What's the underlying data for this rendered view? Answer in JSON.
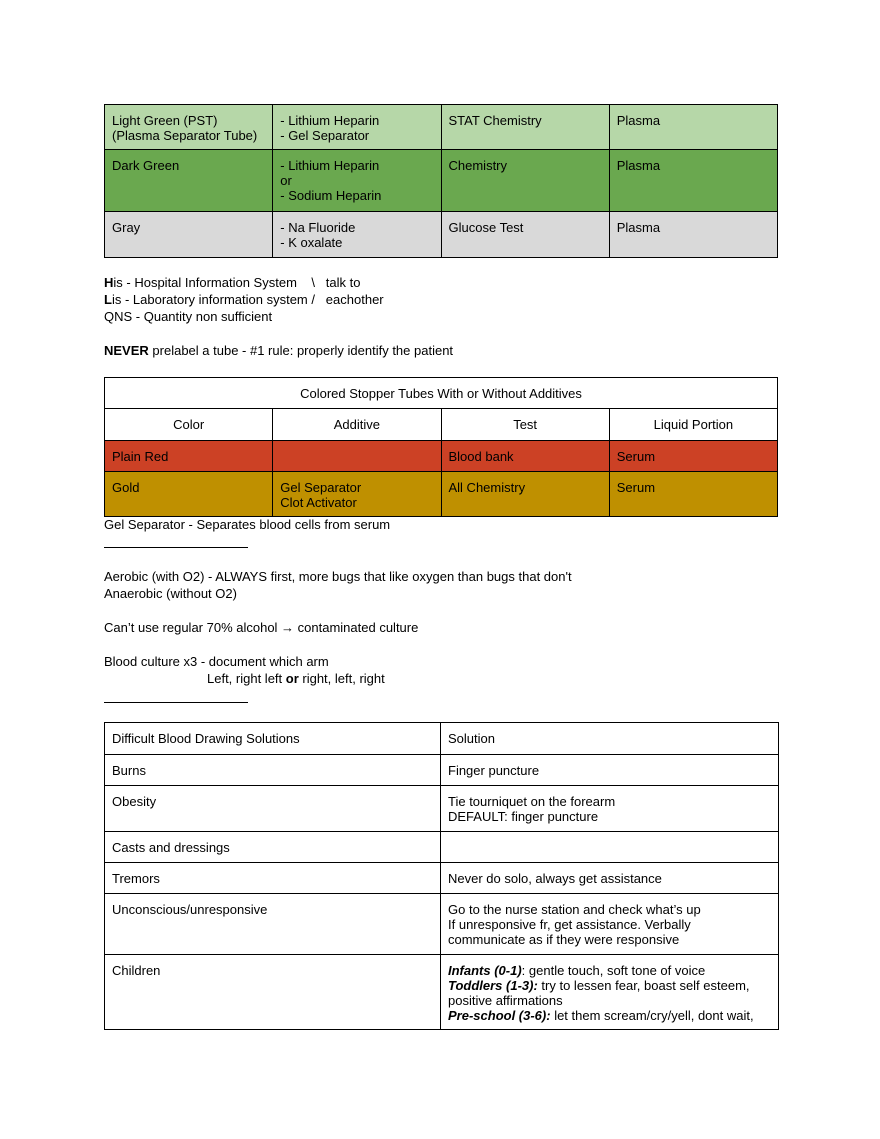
{
  "colors": {
    "light_green": "#b6d7a8",
    "dark_green": "#6aa84f",
    "gray": "#d9d9d9",
    "red": "#cc4125",
    "gold": "#bf9000"
  },
  "table1": {
    "rows": [
      {
        "color": "light_green",
        "cells": [
          [
            "Light Green (PST)",
            "(Plasma Separator Tube)"
          ],
          [
            "- Lithium Heparin",
            "- Gel Separator"
          ],
          [
            "STAT Chemistry"
          ],
          [
            "Plasma"
          ]
        ]
      },
      {
        "color": "dark_green",
        "cells": [
          [
            "Dark Green"
          ],
          [
            "- Lithium Heparin",
            "or",
            "- Sodium Heparin"
          ],
          [
            "Chemistry"
          ],
          [
            "Plasma"
          ]
        ]
      },
      {
        "color": "gray",
        "cells": [
          [
            "Gray"
          ],
          [
            "- Na Fluoride",
            "- K oxalate"
          ],
          [
            "Glucose Test"
          ],
          [
            "Plasma"
          ]
        ]
      }
    ]
  },
  "notes1": [
    [
      {
        "t": "H",
        "b": true
      },
      {
        "t": "is - Hospital Information System    \\   talk to"
      }
    ],
    [
      {
        "t": "L",
        "b": true
      },
      {
        "t": "is - Laboratory information system /   eachother"
      }
    ],
    [
      {
        "t": "QNS - Quantity non sufficient"
      }
    ],
    [],
    [
      {
        "t": "NEVER",
        "b": true
      },
      {
        "t": " prelabel a tube - #1 rule: properly identify the patient"
      }
    ]
  ],
  "table2": {
    "title": "Colored Stopper Tubes With or Without Additives",
    "headers": [
      "Color",
      "Additive",
      "Test",
      "Liquid Portion"
    ],
    "rows": [
      {
        "color": "red",
        "cells": [
          [
            "Plain Red"
          ],
          [],
          [
            "Blood bank"
          ],
          [
            "Serum"
          ]
        ]
      },
      {
        "color": "gold",
        "cells": [
          [
            "Gold"
          ],
          [
            "Gel Separator",
            "Clot Activator"
          ],
          [
            "All Chemistry"
          ],
          [
            "Serum"
          ]
        ]
      }
    ]
  },
  "notes2": {
    "gel": "Gel Separator - Separates blood cells from serum",
    "aerobic": "Aerobic (with O2) - ALWAYS first, more bugs that like oxygen than bugs that don't",
    "anaerobic": "Anaerobic (without O2)",
    "alcohol": "Can’t use regular 70% alcohol → contaminated culture",
    "culture": "Blood culture x3 - document which arm",
    "arms": [
      {
        "t": "Left, right left "
      },
      {
        "t": "or",
        "b": true
      },
      {
        "t": " right, left, right"
      }
    ]
  },
  "table3": {
    "headers": [
      "Difficult Blood Drawing Solutions",
      "Solution"
    ],
    "rows": [
      [
        [
          "Burns"
        ],
        [
          [
            {
              "t": "Finger puncture"
            }
          ]
        ]
      ],
      [
        [
          "Obesity"
        ],
        [
          [
            {
              "t": "Tie tourniquet on the forearm"
            }
          ],
          [
            {
              "t": "DEFAULT: finger puncture"
            }
          ]
        ]
      ],
      [
        [
          "Casts and dressings"
        ],
        []
      ],
      [
        [
          "Tremors"
        ],
        [
          [
            {
              "t": "Never do solo, always get assistance"
            }
          ]
        ]
      ],
      [
        [
          "Unconscious/unresponsive"
        ],
        [
          [
            {
              "t": "Go to the nurse station and check what’s up"
            }
          ],
          [
            {
              "t": "If unresponsive fr, get assistance. Verbally"
            }
          ],
          [
            {
              "t": "communicate as if they were responsive"
            }
          ]
        ]
      ],
      [
        [
          "Children"
        ],
        [
          [
            {
              "t": "Infants (0-1)",
              "bi": true
            },
            {
              "t": ": gentle touch, soft tone of voice"
            }
          ],
          [
            {
              "t": "Toddlers (1-3):",
              "bi": true
            },
            {
              "t": " try to lessen fear, boast self esteem,"
            }
          ],
          [
            {
              "t": "positive affirmations"
            }
          ],
          [
            {
              "t": "Pre-school (3-6):",
              "bi": true
            },
            {
              "t": " let them scream/cry/yell, dont wait,"
            }
          ]
        ]
      ]
    ]
  }
}
